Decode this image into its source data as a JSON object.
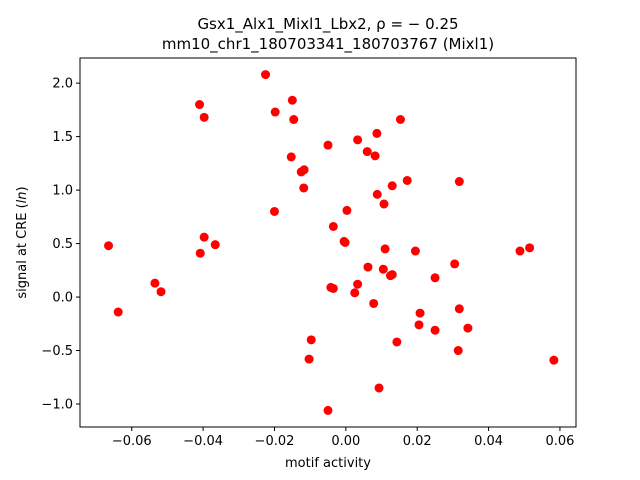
{
  "chart_data": {
    "type": "scatter",
    "title_line1": "Gsx1_Alx1_Mixl1_Lbx2, ρ = − 0.25",
    "title_line2": "mm10_chr1_180703341_180703767 (Mixl1)",
    "xlabel": "motif activity",
    "ylabel_prefix": "signal at CRE (",
    "ylabel_italic": "ln",
    "ylabel_suffix": ")",
    "xlim": [
      -0.0745,
      0.0645
    ],
    "ylim": [
      -1.215,
      2.235
    ],
    "xticks": [
      -0.06,
      -0.04,
      -0.02,
      0.0,
      0.02,
      0.04,
      0.06
    ],
    "xtick_labels": [
      "−0.06",
      "−0.04",
      "−0.02",
      "0.00",
      "0.02",
      "0.04",
      "0.06"
    ],
    "yticks": [
      -1.0,
      -0.5,
      0.0,
      0.5,
      1.0,
      1.5,
      2.0
    ],
    "ytick_labels": [
      "−1.0",
      "−0.5",
      "0.0",
      "0.5",
      "1.0",
      "1.5",
      "2.0"
    ],
    "marker_color": "#ff0000",
    "grid": false,
    "points": [
      {
        "x": -0.0665,
        "y": 0.48
      },
      {
        "x": -0.0638,
        "y": -0.14
      },
      {
        "x": -0.0535,
        "y": 0.13
      },
      {
        "x": -0.0518,
        "y": 0.05
      },
      {
        "x": -0.041,
        "y": 1.8
      },
      {
        "x": -0.0397,
        "y": 1.68
      },
      {
        "x": -0.0408,
        "y": 0.41
      },
      {
        "x": -0.0397,
        "y": 0.56
      },
      {
        "x": -0.0366,
        "y": 0.49
      },
      {
        "x": -0.0225,
        "y": 2.08
      },
      {
        "x": -0.0198,
        "y": 1.73
      },
      {
        "x": -0.02,
        "y": 0.8
      },
      {
        "x": -0.015,
        "y": 1.84
      },
      {
        "x": -0.0146,
        "y": 1.66
      },
      {
        "x": -0.0153,
        "y": 1.31
      },
      {
        "x": -0.0125,
        "y": 1.17
      },
      {
        "x": -0.0117,
        "y": 1.19
      },
      {
        "x": -0.0118,
        "y": 1.02
      },
      {
        "x": -0.0103,
        "y": -0.58
      },
      {
        "x": -0.0097,
        "y": -0.4
      },
      {
        "x": -0.005,
        "y": -1.06
      },
      {
        "x": -0.005,
        "y": 1.42
      },
      {
        "x": -0.0042,
        "y": 0.09
      },
      {
        "x": -0.0035,
        "y": 0.08
      },
      {
        "x": -0.0035,
        "y": 0.66
      },
      {
        "x": -0.0005,
        "y": 0.52
      },
      {
        "x": -0.0002,
        "y": 0.51
      },
      {
        "x": 0.0003,
        "y": 0.81
      },
      {
        "x": 0.0025,
        "y": 0.04
      },
      {
        "x": 0.0033,
        "y": 0.12
      },
      {
        "x": 0.0033,
        "y": 1.47
      },
      {
        "x": 0.006,
        "y": 1.36
      },
      {
        "x": 0.0062,
        "y": 0.28
      },
      {
        "x": 0.0078,
        "y": -0.06
      },
      {
        "x": 0.0082,
        "y": 1.32
      },
      {
        "x": 0.0087,
        "y": 1.53
      },
      {
        "x": 0.0088,
        "y": 0.96
      },
      {
        "x": 0.0093,
        "y": -0.85
      },
      {
        "x": 0.0105,
        "y": 0.26
      },
      {
        "x": 0.0107,
        "y": 0.87
      },
      {
        "x": 0.011,
        "y": 0.45
      },
      {
        "x": 0.0125,
        "y": 0.2
      },
      {
        "x": 0.013,
        "y": 0.21
      },
      {
        "x": 0.013,
        "y": 1.04
      },
      {
        "x": 0.0143,
        "y": -0.42
      },
      {
        "x": 0.0153,
        "y": 1.66
      },
      {
        "x": 0.0172,
        "y": 1.09
      },
      {
        "x": 0.0195,
        "y": 0.43
      },
      {
        "x": 0.0205,
        "y": -0.26
      },
      {
        "x": 0.0208,
        "y": -0.15
      },
      {
        "x": 0.025,
        "y": 0.18
      },
      {
        "x": 0.025,
        "y": -0.31
      },
      {
        "x": 0.0305,
        "y": 0.31
      },
      {
        "x": 0.0315,
        "y": -0.5
      },
      {
        "x": 0.0318,
        "y": 1.08
      },
      {
        "x": 0.0318,
        "y": -0.11
      },
      {
        "x": 0.0342,
        "y": -0.29
      },
      {
        "x": 0.0488,
        "y": 0.43
      },
      {
        "x": 0.0515,
        "y": 0.46
      },
      {
        "x": 0.0583,
        "y": -0.59
      }
    ]
  }
}
